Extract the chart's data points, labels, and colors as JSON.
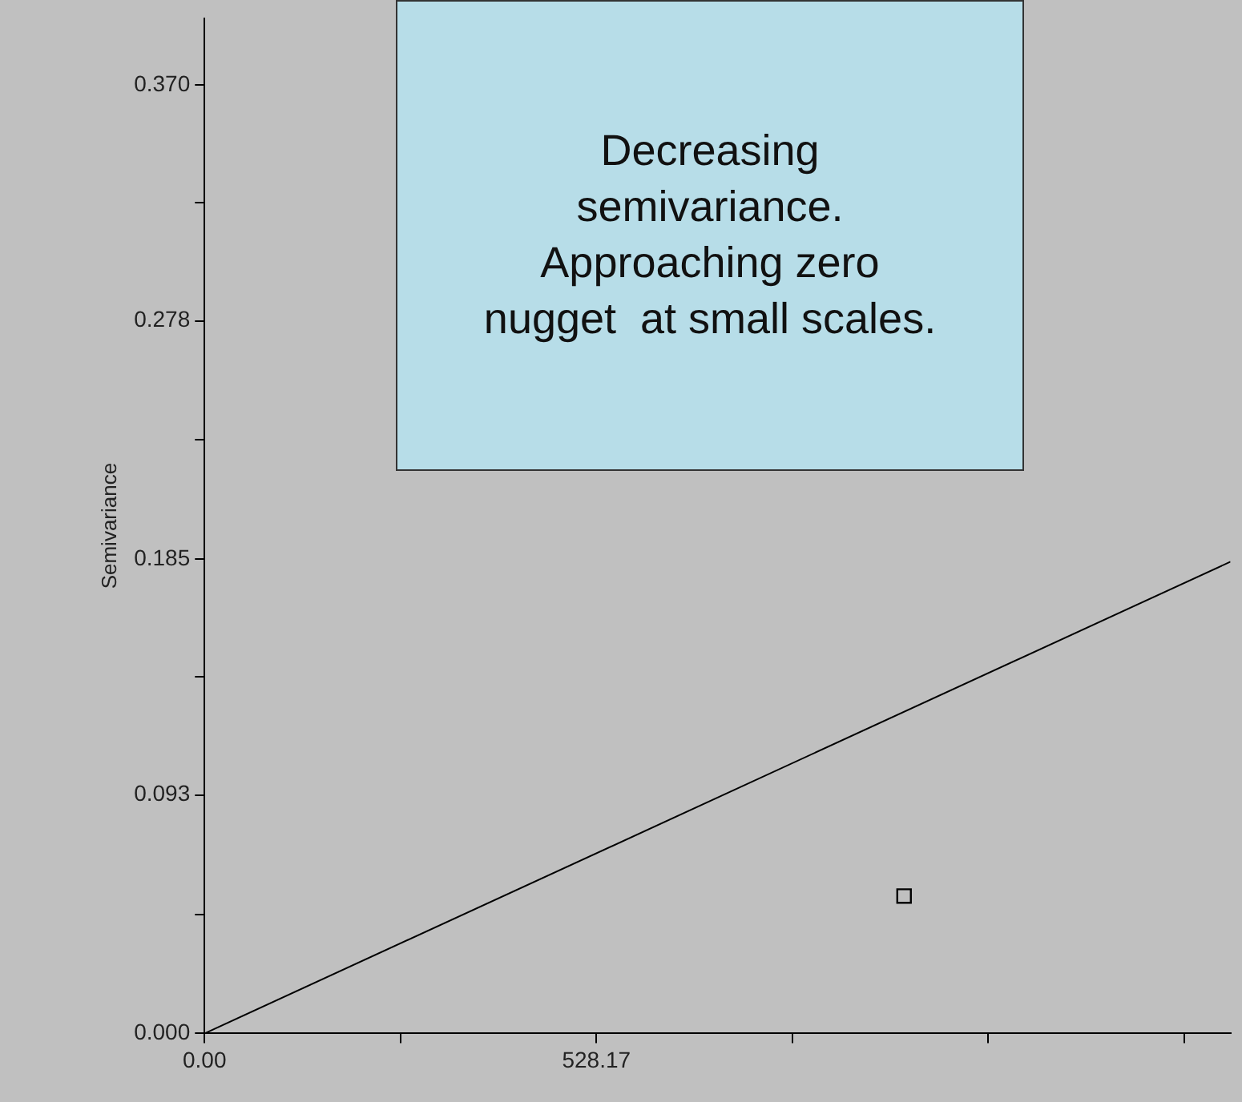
{
  "chart_data": {
    "type": "scatter",
    "ylabel": "Semivariance",
    "annotations": [
      "Decreasing semivariance. Approaching zero nugget  at small scales."
    ],
    "series": [
      {
        "type": "line",
        "x": [
          0,
          1383
        ],
        "values": [
          0,
          0.184
        ],
        "color": "#000000",
        "marker": "none"
      },
      {
        "type": "scatter",
        "x": [
          943
        ],
        "values": [
          0.0536
        ],
        "color": "#000000",
        "marker": "square"
      }
    ],
    "xlim": [
      0,
      1383
    ],
    "ylim": [
      0,
      0.396
    ],
    "xticks": [
      {
        "value": 0,
        "label": "0.00"
      },
      {
        "value": 264.085,
        "label": null
      },
      {
        "value": 528.17,
        "label": "528.17"
      },
      {
        "value": 792.255,
        "label": null
      },
      {
        "value": 1056.34,
        "label": null
      },
      {
        "value": 1320.425,
        "label": null
      }
    ],
    "yticks": [
      {
        "value": 0,
        "label": "0.000"
      },
      {
        "value": 0.0463,
        "label": null
      },
      {
        "value": 0.093,
        "label": "0.093"
      },
      {
        "value": 0.139,
        "label": null
      },
      {
        "value": 0.185,
        "label": "0.185"
      },
      {
        "value": 0.2315,
        "label": null
      },
      {
        "value": 0.278,
        "label": "0.278"
      },
      {
        "value": 0.324,
        "label": null
      },
      {
        "value": 0.37,
        "label": "0.370"
      }
    ],
    "grid": false,
    "legend": false
  }
}
